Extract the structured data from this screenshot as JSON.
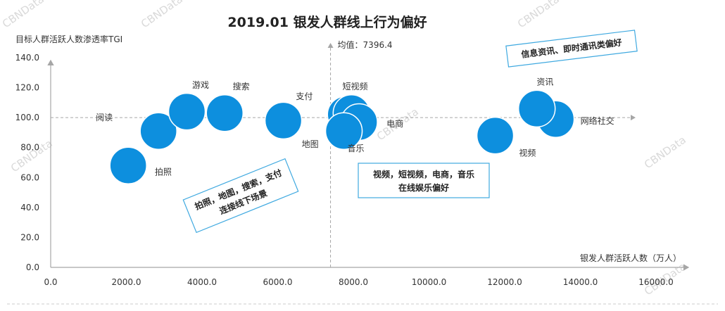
{
  "chart_data": {
    "type": "scatter",
    "title": "2019.01 银发人群线上行为偏好",
    "xlabel": "银发人群活跃人数（万人）",
    "ylabel": "目标人群活跃人数渗透率TGI",
    "xlim": [
      0,
      16000
    ],
    "ylim": [
      0,
      140
    ],
    "x_ticks": [
      "0.0",
      "2000.0",
      "4000.0",
      "6000.0",
      "8000.0",
      "10000.0",
      "12000.0",
      "14000.0",
      "16000.0"
    ],
    "y_ticks": [
      "0.0",
      "20.0",
      "40.0",
      "60.0",
      "80.0",
      "100.0",
      "120.0",
      "140.0"
    ],
    "mean_line": {
      "x": 7396.4,
      "label": "均值：7396.4"
    },
    "reference_y": 100,
    "grid": false,
    "bubble_color": "#0d8fde",
    "points": [
      {
        "label": "拍照",
        "x": 2050,
        "y": 68
      },
      {
        "label": "阅读",
        "x": 2850,
        "y": 91
      },
      {
        "label": "游戏",
        "x": 3600,
        "y": 104
      },
      {
        "label": "搜索",
        "x": 4600,
        "y": 103
      },
      {
        "label": "地图",
        "x": 6150,
        "y": 98
      },
      {
        "label": "支付",
        "x": 7800,
        "y": 102
      },
      {
        "label": "短视频",
        "x": 7950,
        "y": 103
      },
      {
        "label": "电商",
        "x": 8150,
        "y": 97
      },
      {
        "label": "音乐",
        "x": 7750,
        "y": 91
      },
      {
        "label": "视频",
        "x": 11750,
        "y": 88
      },
      {
        "label": "网络社交",
        "x": 13350,
        "y": 99
      },
      {
        "label": "资讯",
        "x": 12850,
        "y": 106
      }
    ],
    "annotations": [
      {
        "id": "a1",
        "lines": [
          "信息资讯、即时通讯类偏好"
        ]
      },
      {
        "id": "a2",
        "lines": [
          "拍照，地图，搜索，支付",
          "连接线下场景"
        ]
      },
      {
        "id": "a3",
        "lines": [
          "视频，短视频，电商，音乐",
          "在线娱乐偏好"
        ]
      }
    ]
  },
  "watermarks": [
    "CBNData",
    "CBNData",
    "CBNData",
    "CBNData",
    "CBNData",
    "CBNData",
    "CBNData"
  ]
}
